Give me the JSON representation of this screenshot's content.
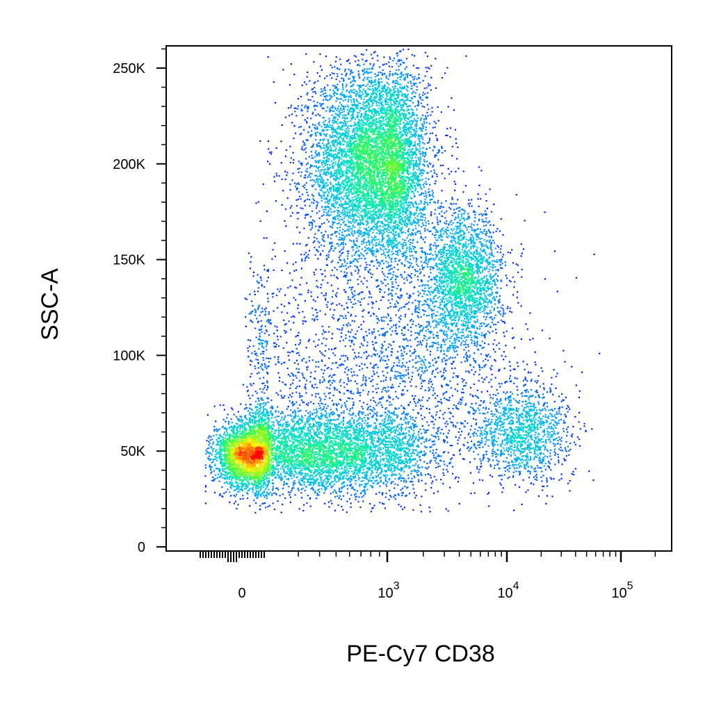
{
  "chart_data": {
    "type": "scatter",
    "subtype": "flow-cytometry density dot plot (biexponential x, linear y)",
    "title": "",
    "xlabel": "PE-Cy7 CD38",
    "ylabel": "SSC-A",
    "x_scale": "biexponential",
    "y_scale": "linear",
    "ylim": [
      0,
      262144
    ],
    "xlim": [
      -200,
      150000
    ],
    "grid": false,
    "legend": "none",
    "density_colormap": [
      "#0000ff",
      "#00c8ff",
      "#00ff80",
      "#ffff00",
      "#ff0000"
    ],
    "x_ticks": [
      {
        "value": 0,
        "base": "0",
        "exp": ""
      },
      {
        "value": 1000,
        "base": "10",
        "exp": "3"
      },
      {
        "value": 10000,
        "base": "10",
        "exp": "4"
      },
      {
        "value": 100000,
        "base": "10",
        "exp": "5"
      }
    ],
    "y_ticks": [
      {
        "value": 0,
        "label": "0"
      },
      {
        "value": 50000,
        "label": "50K"
      },
      {
        "value": 100000,
        "label": "100K"
      },
      {
        "value": 150000,
        "label": "150K"
      },
      {
        "value": 200000,
        "label": "200K"
      },
      {
        "value": 250000,
        "label": "250K"
      }
    ],
    "populations": [
      {
        "x_center": 850,
        "x_spread": 0.2,
        "y_center": 200000,
        "y_spread": 26000,
        "count": 7000,
        "peak_density": "high"
      },
      {
        "x_center": 4300,
        "x_spread": 0.16,
        "y_center": 140000,
        "y_spread": 18000,
        "count": 2200,
        "peak_density": "medium"
      },
      {
        "x_center": 0,
        "x_spread": 110,
        "y_center": 48000,
        "y_spread": 9000,
        "count": 2200,
        "peak_density": "medium"
      },
      {
        "x_center": 420,
        "x_spread": 0.35,
        "y_center": 50000,
        "y_spread": 11000,
        "count": 4500,
        "peak_density": "medium"
      },
      {
        "x_center": 13000,
        "x_spread": 0.22,
        "y_center": 60000,
        "y_spread": 13000,
        "count": 1300,
        "peak_density": "low"
      },
      {
        "x_center": 900,
        "x_spread": 0.55,
        "y_center": 95000,
        "y_spread": 32000,
        "count": 2200,
        "peak_density": "low"
      }
    ]
  }
}
